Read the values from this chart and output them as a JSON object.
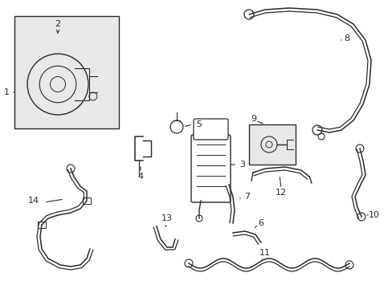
{
  "bg_color": "#ffffff",
  "line_color": "#2a2a2a",
  "box_fill": "#e8e8e8",
  "figsize": [
    4.89,
    3.6
  ],
  "dpi": 100
}
